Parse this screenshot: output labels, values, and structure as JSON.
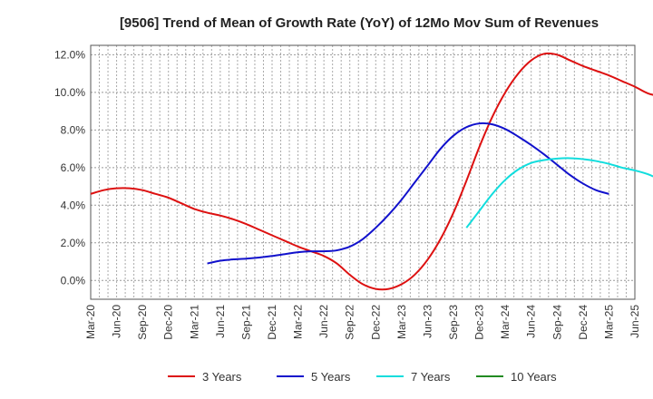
{
  "chart_data": {
    "type": "line",
    "title": "[9506]  Trend of Mean of Growth Rate (YoY) of 12Mo Mov Sum of Revenues",
    "xlabel": "",
    "ylabel": "",
    "x_ticks": [
      "Mar-20",
      "Jun-20",
      "Sep-20",
      "Dec-20",
      "Mar-21",
      "Jun-21",
      "Sep-21",
      "Dec-21",
      "Mar-22",
      "Jun-22",
      "Sep-22",
      "Dec-22",
      "Mar-23",
      "Jun-23",
      "Sep-23",
      "Dec-23",
      "Mar-24",
      "Jun-24",
      "Sep-24",
      "Dec-24",
      "Mar-25",
      "Jun-25"
    ],
    "y_ticks": [
      "0.0%",
      "2.0%",
      "4.0%",
      "6.0%",
      "8.0%",
      "10.0%",
      "12.0%"
    ],
    "ylim": [
      -1.0,
      12.5
    ],
    "grid": true,
    "legend_position": "bottom",
    "series": [
      {
        "name": "3 Years",
        "color": "#dd1111",
        "values": [
          4.6,
          4.8,
          4.9,
          4.9,
          4.8,
          4.6,
          4.4,
          4.1,
          3.8,
          3.6,
          3.45,
          3.25,
          3.0,
          2.7,
          2.4,
          2.1,
          1.8,
          1.55,
          1.3,
          0.9,
          0.3,
          -0.2,
          -0.45,
          -0.45,
          -0.2,
          0.3,
          1.1,
          2.2,
          3.6,
          5.3,
          7.1,
          8.7,
          10.0,
          11.0,
          11.7,
          12.05,
          12.0,
          11.7,
          11.4,
          11.15,
          10.9,
          10.6,
          10.3,
          9.95,
          9.8,
          9.8
        ]
      },
      {
        "name": "5 Years",
        "color": "#1111cc",
        "values": [
          null,
          null,
          null,
          null,
          null,
          null,
          null,
          null,
          null,
          0.9,
          1.05,
          1.12,
          1.16,
          1.22,
          1.3,
          1.4,
          1.5,
          1.55,
          1.55,
          1.6,
          1.8,
          2.2,
          2.8,
          3.5,
          4.3,
          5.2,
          6.1,
          7.0,
          7.7,
          8.15,
          8.35,
          8.3,
          8.05,
          7.65,
          7.2,
          6.7,
          6.15,
          5.6,
          5.15,
          4.8,
          4.6
        ]
      },
      {
        "name": "7 Years",
        "color": "#11dddd",
        "values": [
          null,
          null,
          null,
          null,
          null,
          null,
          null,
          null,
          null,
          null,
          null,
          null,
          null,
          null,
          null,
          null,
          null,
          null,
          null,
          null,
          null,
          null,
          null,
          null,
          null,
          null,
          null,
          null,
          null,
          2.8,
          3.7,
          4.6,
          5.35,
          5.9,
          6.25,
          6.4,
          6.48,
          6.5,
          6.45,
          6.35,
          6.2,
          6.0,
          5.85,
          5.65,
          5.35
        ]
      },
      {
        "name": "10 Years",
        "color": "#228b22",
        "values": []
      }
    ]
  }
}
